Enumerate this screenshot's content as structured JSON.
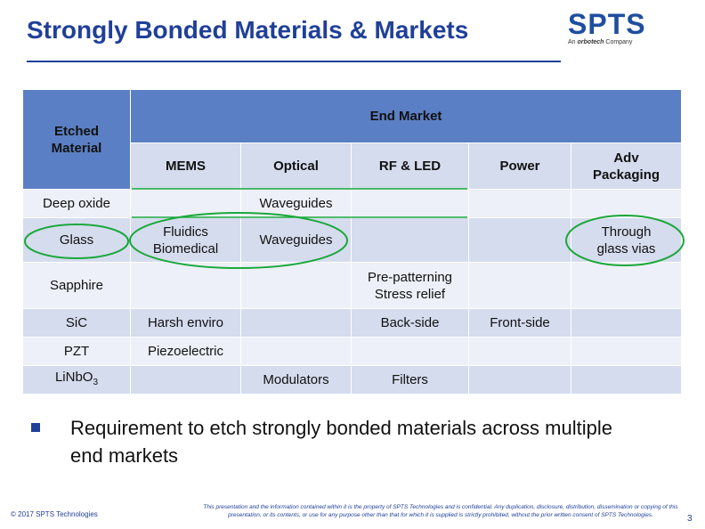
{
  "slide": {
    "title": "Strongly Bonded Materials & Markets",
    "page_number": "3"
  },
  "logo": {
    "brand": "SPTS",
    "tagline_prefix": "An",
    "tagline_company": "orbotech",
    "tagline_suffix": "Company"
  },
  "table": {
    "corner_header": "Etched Material",
    "group_header": "End Market",
    "columns": [
      "MEMS",
      "Optical",
      "RF & LED",
      "Power",
      "Adv Packaging"
    ],
    "rows": [
      {
        "material": "Deep oxide",
        "cells": [
          "",
          "Waveguides",
          "",
          "",
          ""
        ]
      },
      {
        "material": "Glass",
        "cells": [
          "Fluidics Biomedical",
          "Waveguides",
          "",
          "",
          "Through glass vias"
        ]
      },
      {
        "material": "Sapphire",
        "cells": [
          "",
          "",
          "Pre-patterning Stress relief",
          "",
          ""
        ]
      },
      {
        "material": "SiC",
        "cells": [
          "Harsh enviro",
          "",
          "Back-side",
          "Front-side",
          ""
        ]
      },
      {
        "material": "PZT",
        "cells": [
          "Piezoelectric",
          "",
          "",
          "",
          ""
        ]
      },
      {
        "material_base": "LiNbO",
        "material_sub": "3",
        "cells": [
          "",
          "Modulators",
          "Filters",
          "",
          ""
        ]
      }
    ]
  },
  "bullet": {
    "text": "Requirement to etch strongly bonded materials across multiple end markets"
  },
  "footer": {
    "copyright": "© 2017 SPTS Technologies",
    "disclaimer": "This presentation and the information contained within it is the property of SPTS Technologies and is confidential. Any duplication, disclosure, distribution, dissemination or copying of this presentation, or its contents, or use for any purpose other than that for which it is supplied is strictly prohibited, without the prior written consent of SPTS Technologies."
  },
  "colors": {
    "title_blue": "#1f3f99",
    "header_blue": "#5b7fc4",
    "row_dark": "#d5dcee",
    "row_light": "#edf0f8",
    "highlight_green": "#1aa83a"
  }
}
